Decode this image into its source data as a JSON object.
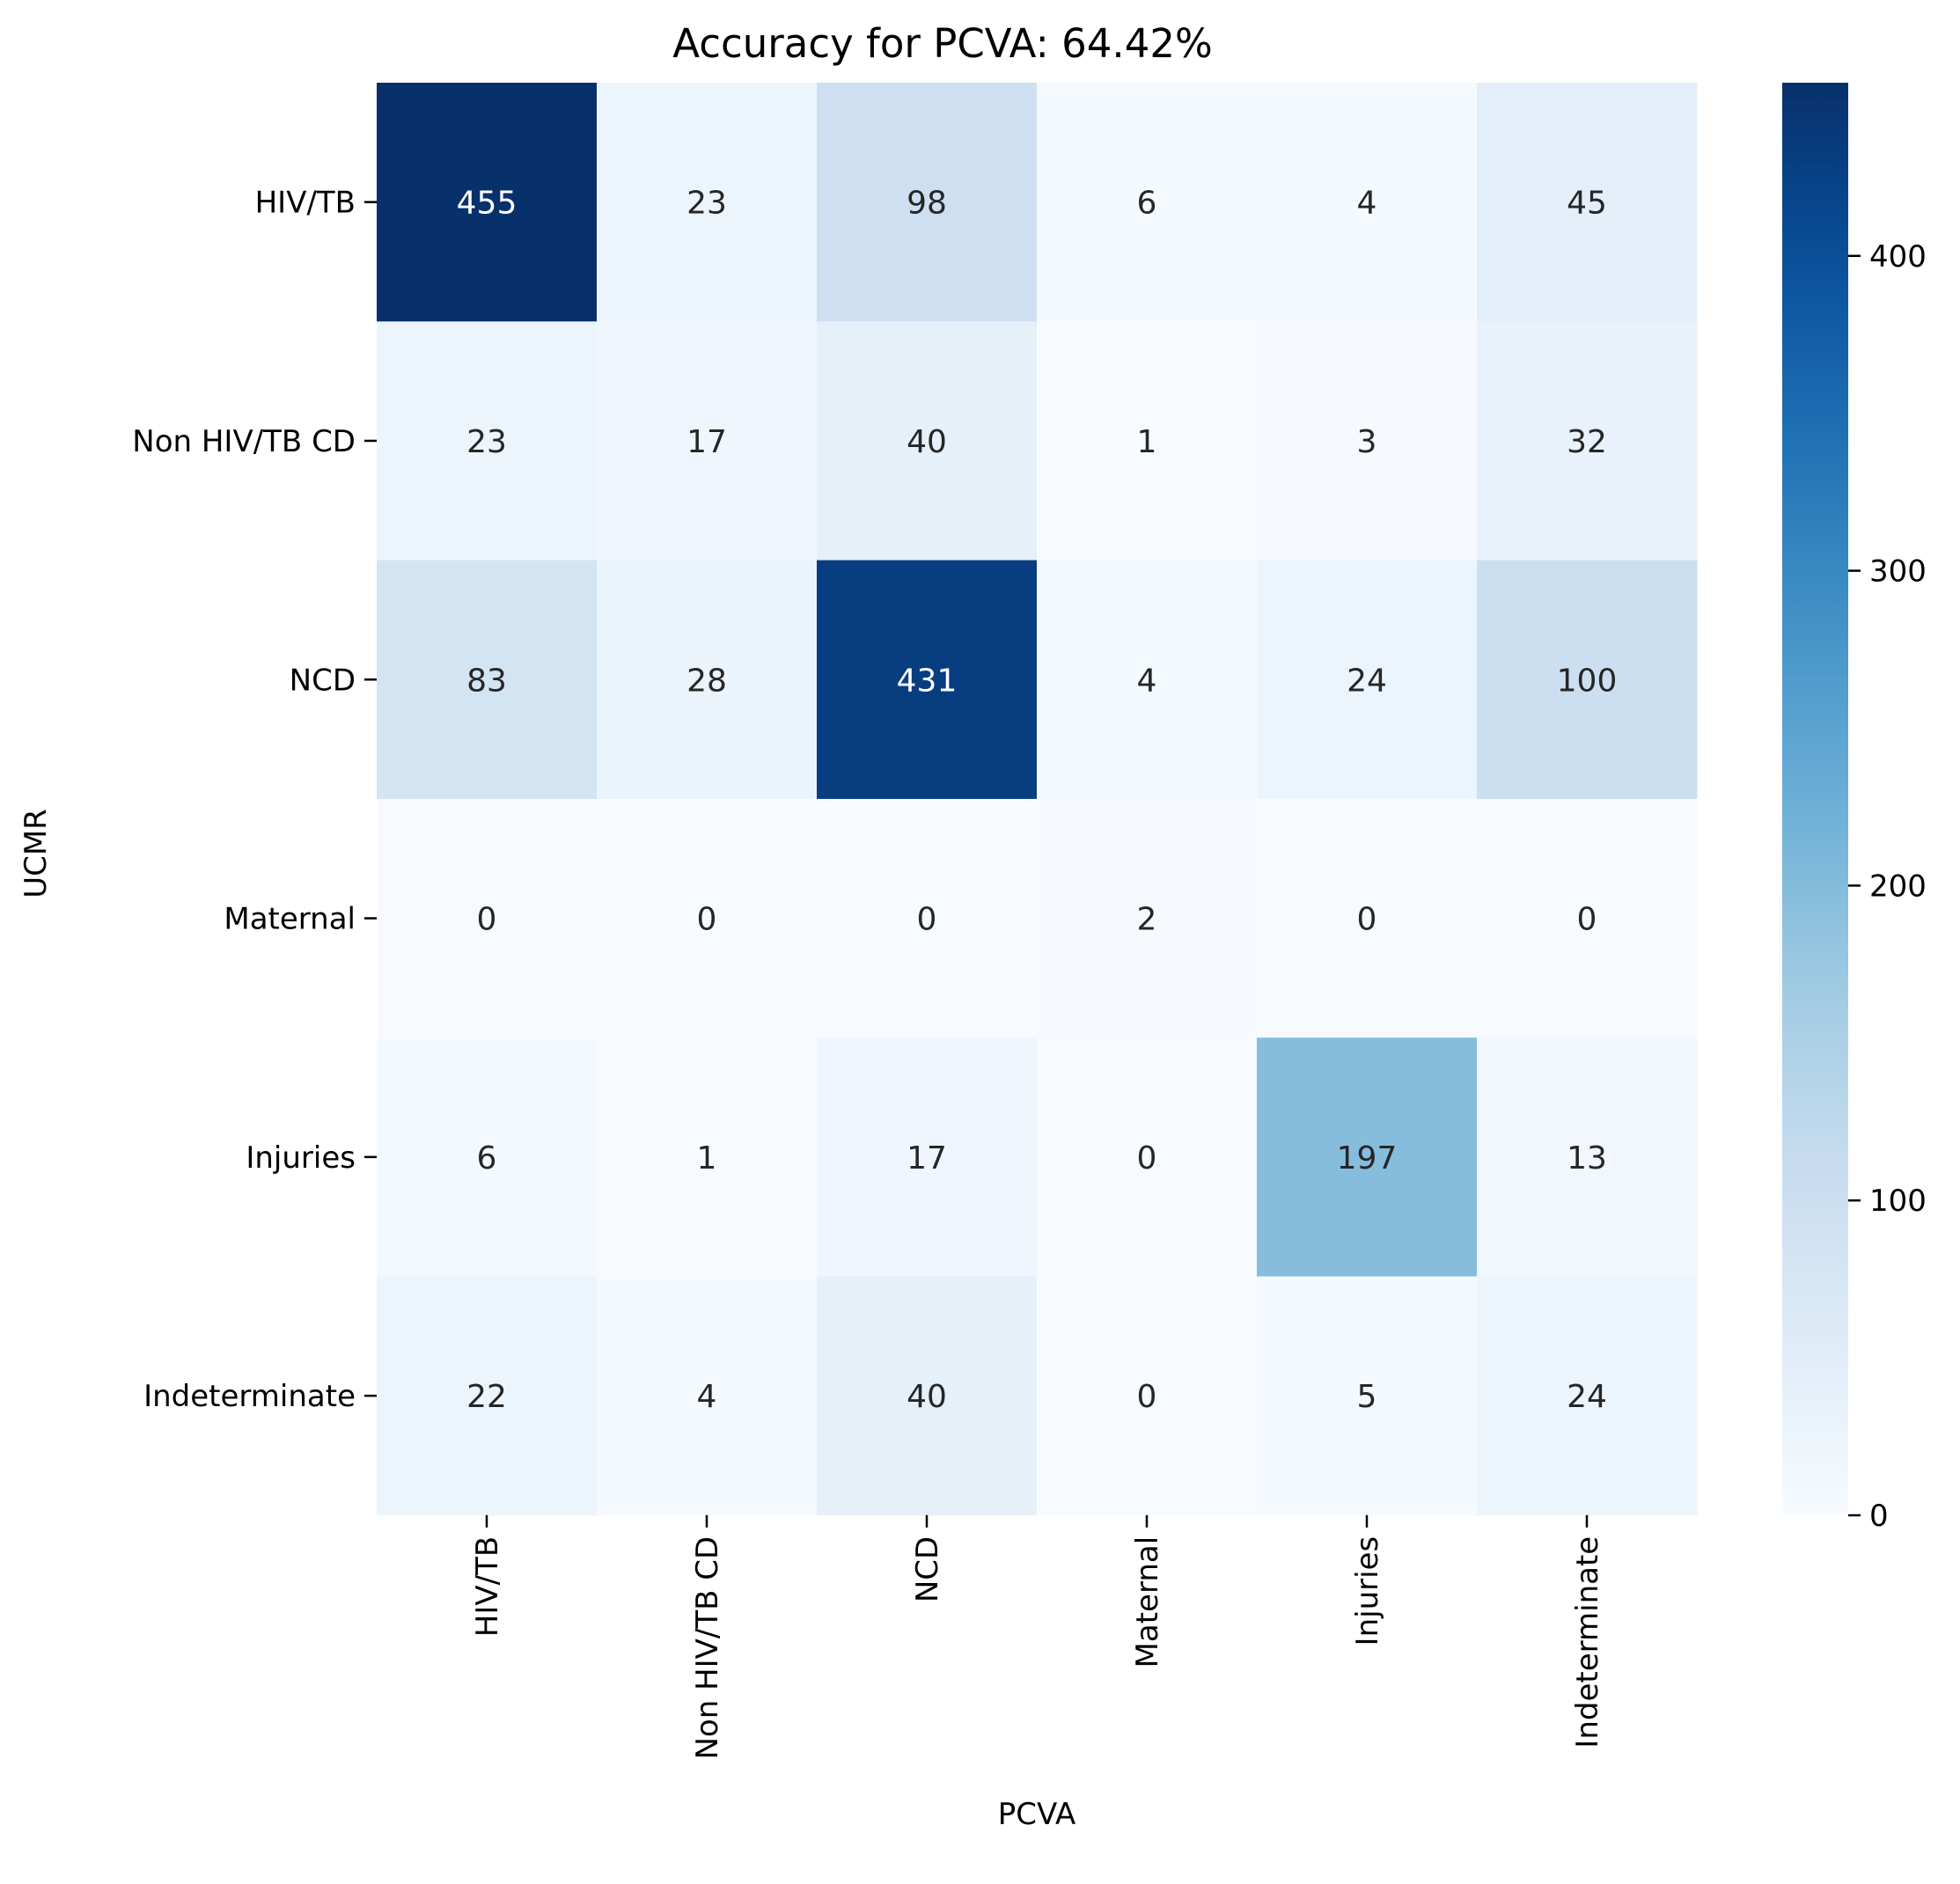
{
  "chart_data": {
    "type": "heatmap",
    "title": "Accuracy for PCVA: 64.42%",
    "xlabel": "PCVA",
    "ylabel": "UCMR",
    "x_categories": [
      "HIV/TB",
      "Non HIV/TB CD",
      "NCD",
      "Maternal",
      "Injuries",
      "Indeterminate"
    ],
    "y_categories": [
      "HIV/TB",
      "Non HIV/TB CD",
      "NCD",
      "Maternal",
      "Injuries",
      "Indeterminate"
    ],
    "values": [
      [
        455,
        23,
        98,
        6,
        4,
        45
      ],
      [
        23,
        17,
        40,
        1,
        3,
        32
      ],
      [
        83,
        28,
        431,
        4,
        24,
        100
      ],
      [
        0,
        0,
        0,
        2,
        0,
        0
      ],
      [
        6,
        1,
        17,
        0,
        197,
        13
      ],
      [
        22,
        4,
        40,
        0,
        5,
        24
      ]
    ],
    "colorbar": {
      "colormap": "Blues",
      "range": [
        0,
        455
      ],
      "ticks": [
        0,
        100,
        200,
        300,
        400
      ]
    }
  }
}
